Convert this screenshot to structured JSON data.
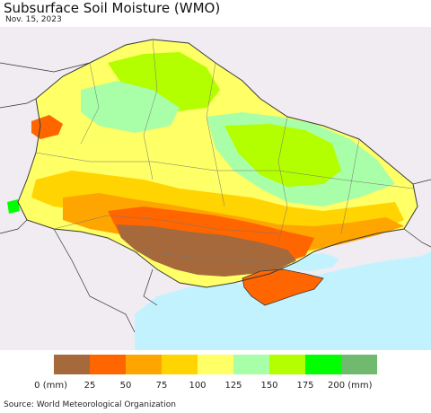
{
  "title": "Subsurface Soil Moisture (WMO)",
  "date": "Nov. 15, 2023",
  "legend": {
    "tick_labels": [
      "0 (mm)",
      "25",
      "50",
      "75",
      "100",
      "125",
      "150",
      "175",
      "200 (mm)"
    ],
    "colors": [
      "#a5693b",
      "#ff6600",
      "#ffa500",
      "#ffd400",
      "#ffff66",
      "#a8ffa8",
      "#b3ff00",
      "#00ff00",
      "#6fba6f"
    ]
  },
  "source": "Source: World Meteorological Organization",
  "colors": {
    "sea": "#c3f2ff",
    "outside": "#f0ecf2",
    "border": "#3a3a3a"
  }
}
